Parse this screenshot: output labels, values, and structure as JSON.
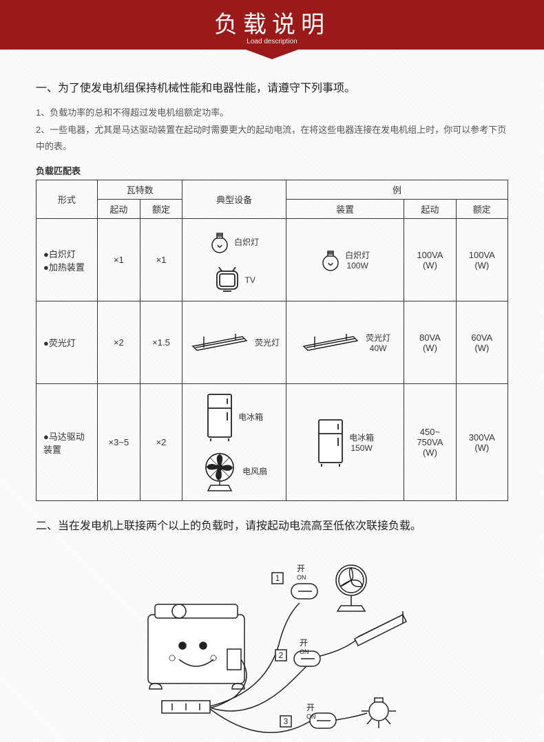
{
  "banner": {
    "title": "负载说明",
    "subtitle": "Load description",
    "bg": "#9a1a1a"
  },
  "section1": {
    "heading": "一、为了使发电机组保持机械性能和电器性能，请遵守下列事项。",
    "p1": "1、负载功率的总和不得超过发电机组额定功率。",
    "p2": "2、一些电器，尤其是马达驱动装置在起动时需要更大的起动电流，在将这些电器连接在发电机组上时，你可以参考下页中的表。"
  },
  "table": {
    "title": "负载匹配表",
    "headers": {
      "type": "形式",
      "watts": "瓦特数",
      "start": "起动",
      "rated": "额定",
      "equip": "典型设备",
      "example": "例",
      "device": "装置"
    },
    "rows": [
      {
        "type_lines": [
          "●白炽灯",
          "●加热装置"
        ],
        "start_mult": "×1",
        "rated_mult": "×1",
        "equip": [
          {
            "icon": "bulb",
            "label": "白炽灯"
          },
          {
            "icon": "tv",
            "label": "TV"
          }
        ],
        "device": {
          "icon": "bulb",
          "label": "白炽灯",
          "label2": "100W"
        },
        "ex_start": "100VA (W)",
        "ex_rated": "100VA (W)"
      },
      {
        "type_lines": [
          "●荧光灯"
        ],
        "start_mult": "×2",
        "rated_mult": "×1.5",
        "equip": [
          {
            "icon": "tube",
            "label": "荧光灯"
          }
        ],
        "device": {
          "icon": "tube",
          "label": "荧光灯",
          "label2": "40W"
        },
        "ex_start": "80VA (W)",
        "ex_rated": "60VA (W)"
      },
      {
        "type_lines": [
          "●马达驱动",
          "装置"
        ],
        "start_mult": "×3~5",
        "rated_mult": "×2",
        "equip": [
          {
            "icon": "fridge",
            "label": "电冰箱"
          },
          {
            "icon": "fan",
            "label": "电风扇"
          }
        ],
        "device": {
          "icon": "fridge",
          "label": "电冰箱",
          "label2": "150W"
        },
        "ex_start": "450~ 750VA (W)",
        "ex_rated": "300VA (W)"
      }
    ]
  },
  "section2": {
    "heading": "二、当在发电机上联接两个以上的负载时，请按起动电流高至低依次联接负载。",
    "steps": [
      {
        "num": "1",
        "label": "开",
        "sub": "ON"
      },
      {
        "num": "2",
        "label": "开",
        "sub": "ON"
      },
      {
        "num": "3",
        "label": "开",
        "sub": "ON"
      }
    ]
  },
  "colors": {
    "stroke": "#222",
    "text": "#333"
  }
}
